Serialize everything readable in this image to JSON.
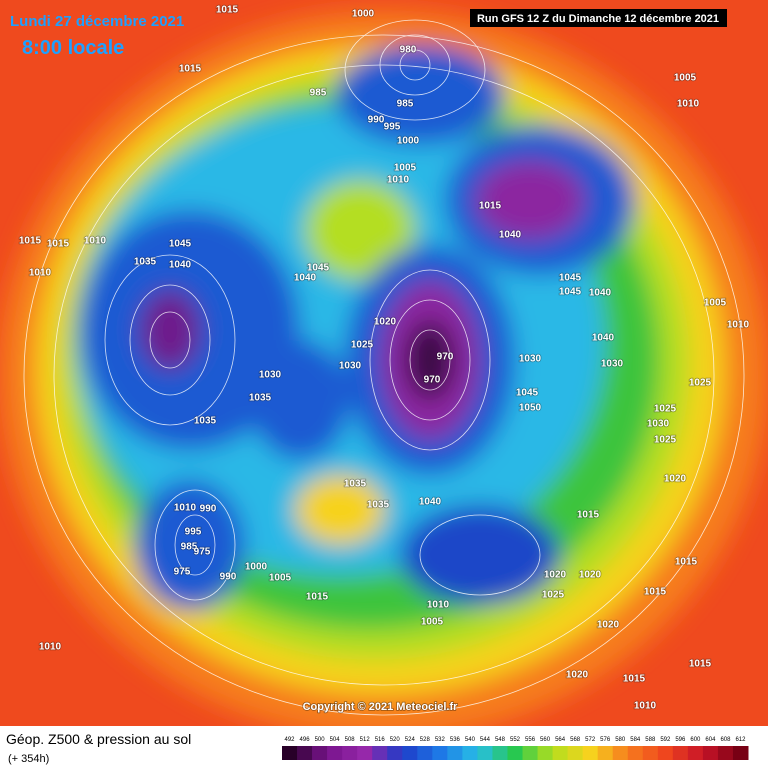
{
  "header": {
    "date": "Lundi 27 décembre 2021",
    "time": "8:00 locale",
    "run": "Run GFS 12 Z du Dimanche 12 décembre 2021"
  },
  "copyright": "Copyright © 2021 Meteociel.fr",
  "footer": {
    "title": "Géop. Z500 & pression au sol",
    "lead": "(+ 354h)"
  },
  "colorbar": {
    "labels": [
      492,
      496,
      500,
      504,
      508,
      512,
      516,
      520,
      524,
      528,
      532,
      536,
      540,
      544,
      548,
      552,
      556,
      560,
      564,
      568,
      572,
      576,
      580,
      584,
      588,
      592,
      596,
      600,
      604,
      608,
      612
    ]
  },
  "isobar_labels": [
    1000,
    1015,
    1015,
    985,
    980,
    985,
    990,
    995,
    1000,
    1005,
    1010,
    1015,
    1040,
    1045,
    1040,
    1035,
    1015,
    1015,
    1010,
    1010,
    1045,
    1040,
    1020,
    1025,
    1030,
    1030,
    1035,
    1035,
    970,
    970,
    1045,
    1045,
    1040,
    1040,
    1030,
    1030,
    1045,
    1050,
    1005,
    1010,
    1025,
    1025,
    1030,
    1025,
    1020,
    1035,
    1035,
    1040,
    1010,
    990,
    995,
    985,
    975,
    975,
    990,
    1000,
    1005,
    1015,
    1015,
    1015,
    1020,
    1020,
    1025,
    1010,
    1005,
    1020,
    1015,
    1010,
    1015,
    1020,
    1015,
    1010,
    1010,
    1005
  ]
}
